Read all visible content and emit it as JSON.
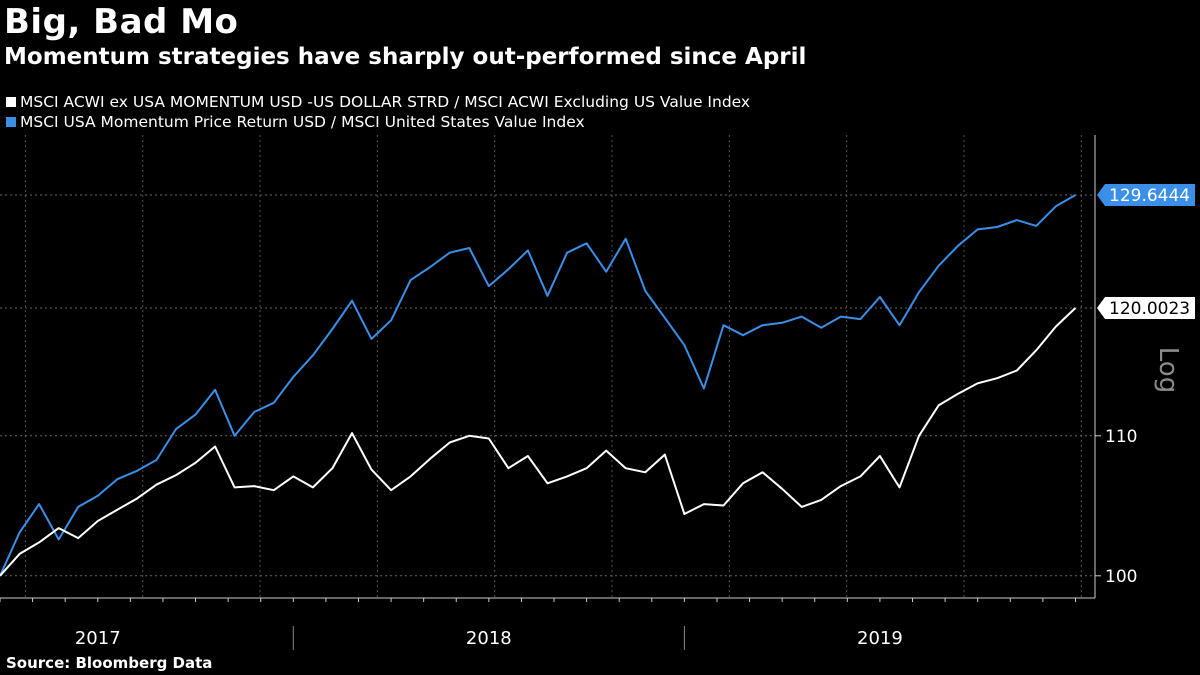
{
  "chart_data": {
    "type": "line",
    "title": "Big, Bad Mo",
    "subtitle": "Momentum strategies have sharply out-performed since April",
    "source": "Source: Bloomberg Data",
    "scale_label": "Log",
    "y_scale": "log",
    "ylim": [
      98.5,
      135
    ],
    "y_ticks": [
      100,
      110
    ],
    "year_labels": [
      "2017",
      "2018",
      "2019"
    ],
    "x_range": [
      2016.75,
      2019.55
    ],
    "year_labels_at": [
      2017.0,
      2018.0,
      2019.0
    ],
    "year_separators": [
      2017.5,
      2018.5
    ],
    "series": [
      {
        "name": "MSCI ACWI ex USA MOMENTUM USD -US DOLLAR STRD / MSCI ACWI Excluding US Value Index",
        "color": "#ffffff",
        "last_value_label": "120.0023",
        "x": [
          2016.75,
          2016.8,
          2016.85,
          2016.9,
          2016.95,
          2017.0,
          2017.05,
          2017.1,
          2017.15,
          2017.2,
          2017.25,
          2017.3,
          2017.35,
          2017.4,
          2017.45,
          2017.5,
          2017.55,
          2017.6,
          2017.65,
          2017.7,
          2017.75,
          2017.8,
          2017.85,
          2017.9,
          2017.95,
          2018.0,
          2018.05,
          2018.1,
          2018.15,
          2018.2,
          2018.25,
          2018.3,
          2018.35,
          2018.4,
          2018.45,
          2018.5,
          2018.55,
          2018.6,
          2018.65,
          2018.7,
          2018.75,
          2018.8,
          2018.85,
          2018.9,
          2018.95,
          2019.0,
          2019.05,
          2019.1,
          2019.15,
          2019.2,
          2019.25,
          2019.3,
          2019.35,
          2019.4,
          2019.45,
          2019.5
        ],
        "values": [
          100.0,
          101.5,
          102.3,
          103.3,
          102.6,
          103.8,
          104.6,
          105.4,
          106.4,
          107.1,
          108.0,
          109.2,
          106.2,
          106.3,
          106.0,
          107.0,
          106.2,
          107.6,
          110.2,
          107.5,
          106.0,
          107.0,
          108.3,
          109.5,
          110.0,
          109.8,
          107.6,
          108.5,
          106.5,
          107.0,
          107.6,
          108.9,
          107.6,
          107.3,
          108.6,
          104.3,
          105.0,
          104.9,
          106.5,
          107.3,
          106.1,
          104.8,
          105.3,
          106.3,
          107.0,
          108.5,
          106.2,
          110.0,
          112.3,
          113.2,
          114.0,
          114.4,
          115.0,
          116.6,
          118.5,
          120.0
        ]
      },
      {
        "name": "MSCI USA Momentum Price Return USD / MSCI United States Value Index",
        "color": "#3b8fe8",
        "last_value_label": "129.6444",
        "x": [
          2016.75,
          2016.8,
          2016.85,
          2016.9,
          2016.95,
          2017.0,
          2017.05,
          2017.1,
          2017.15,
          2017.2,
          2017.25,
          2017.3,
          2017.35,
          2017.4,
          2017.45,
          2017.5,
          2017.55,
          2017.6,
          2017.65,
          2017.7,
          2017.75,
          2017.8,
          2017.85,
          2017.9,
          2017.95,
          2018.0,
          2018.05,
          2018.1,
          2018.15,
          2018.2,
          2018.25,
          2018.3,
          2018.35,
          2018.4,
          2018.45,
          2018.5,
          2018.55,
          2018.6,
          2018.65,
          2018.7,
          2018.75,
          2018.8,
          2018.85,
          2018.9,
          2018.95,
          2019.0,
          2019.05,
          2019.1,
          2019.15,
          2019.2,
          2019.25,
          2019.3,
          2019.35,
          2019.4,
          2019.45,
          2019.5
        ],
        "values": [
          100.0,
          103.0,
          105.0,
          102.5,
          104.8,
          105.6,
          106.8,
          107.4,
          108.2,
          110.5,
          111.6,
          113.5,
          110.0,
          111.8,
          112.5,
          114.5,
          116.2,
          118.3,
          120.6,
          117.5,
          119.0,
          122.3,
          123.4,
          124.6,
          125.0,
          121.8,
          123.2,
          124.8,
          121.0,
          124.6,
          125.4,
          123.0,
          125.8,
          121.4,
          119.2,
          117.0,
          113.6,
          118.6,
          117.8,
          118.6,
          118.8,
          119.3,
          118.4,
          119.3,
          119.1,
          120.9,
          118.6,
          121.3,
          123.5,
          125.2,
          126.6,
          126.8,
          127.4,
          126.9,
          128.6,
          129.6
        ]
      }
    ]
  }
}
